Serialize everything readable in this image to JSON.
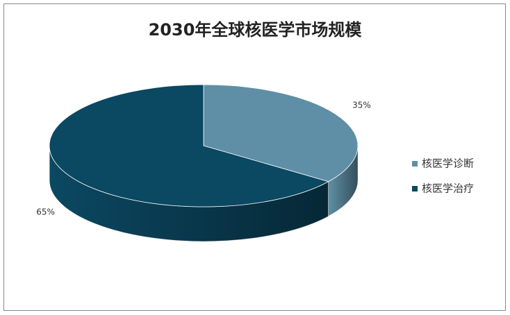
{
  "chart_data": {
    "type": "pie",
    "title": "2030年全球核医学市场规模",
    "categories": [
      "核医学诊断",
      "核医学治疗"
    ],
    "values": [
      35,
      65
    ],
    "value_labels": [
      "35%",
      "65%"
    ],
    "colors": [
      "#5f8fa6",
      "#0b4862"
    ],
    "legend": "right"
  }
}
